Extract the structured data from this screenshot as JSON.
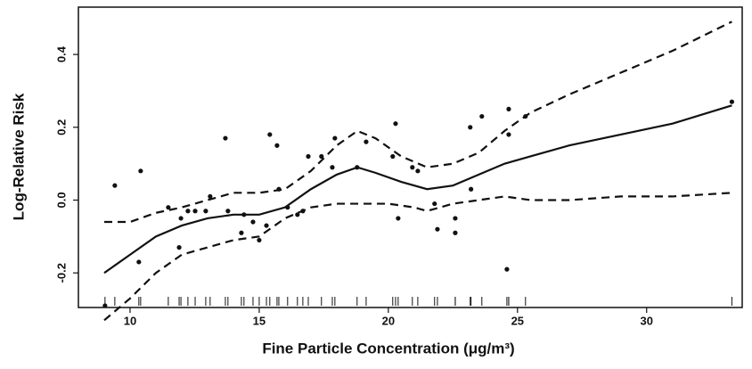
{
  "chart_data": {
    "type": "scatter",
    "x_label": "Fine Particle Concentration (μg/m³)",
    "y_label": "Log-Relative Risk",
    "xlim": [
      8,
      33.7
    ],
    "ylim": [
      -0.295,
      0.53
    ],
    "xticks": [
      10,
      15,
      20,
      25,
      30
    ],
    "yticks": [
      -0.2,
      {
        "value": 0,
        "label": "0.0"
      },
      0.2,
      0.4
    ],
    "color": "#111111",
    "rug": true,
    "x": [
      9.03,
      9.41,
      10.34,
      10.41,
      11.48,
      11.9,
      11.97,
      12.24,
      12.52,
      12.93,
      13.1,
      13.69,
      13.79,
      14.31,
      14.41,
      14.76,
      15.0,
      15.28,
      15.41,
      15.69,
      15.76,
      16.1,
      16.48,
      16.69,
      16.9,
      17.41,
      17.83,
      17.93,
      18.79,
      19.14,
      20.17,
      20.28,
      20.38,
      20.93,
      21.14,
      21.79,
      21.9,
      22.59,
      22.59,
      23.17,
      23.2,
      23.62,
      24.59,
      24.66,
      24.66,
      25.31,
      33.3
    ],
    "values": [
      -0.29,
      0.04,
      -0.17,
      0.08,
      -0.02,
      -0.13,
      -0.05,
      -0.03,
      -0.03,
      -0.03,
      0.01,
      0.17,
      -0.03,
      -0.09,
      -0.04,
      -0.06,
      -0.11,
      -0.07,
      0.18,
      0.15,
      0.03,
      -0.02,
      -0.04,
      -0.03,
      0.12,
      0.12,
      0.09,
      0.17,
      0.09,
      0.16,
      0.12,
      0.21,
      -0.05,
      0.09,
      0.08,
      -0.01,
      -0.08,
      -0.09,
      -0.05,
      0.2,
      0.03,
      0.23,
      -0.19,
      0.25,
      0.18,
      0.23,
      0.27
    ],
    "series": [
      {
        "dashed": false,
        "x": [
          9,
          10,
          11,
          12,
          13,
          14,
          15,
          16,
          17,
          18,
          18.8,
          19.5,
          20.5,
          21.5,
          22.5,
          23.5,
          24.5,
          25.5,
          27,
          29,
          31,
          33.3
        ],
        "values": [
          -0.2,
          -0.15,
          -0.1,
          -0.07,
          -0.05,
          -0.04,
          -0.04,
          -0.02,
          0.03,
          0.07,
          0.09,
          0.075,
          0.05,
          0.03,
          0.04,
          0.07,
          0.1,
          0.12,
          0.15,
          0.18,
          0.21,
          0.26
        ]
      },
      {
        "dashed": true,
        "x": [
          9,
          10,
          11,
          12,
          13,
          14,
          15,
          16,
          17,
          18,
          18.8,
          19.5,
          20.5,
          21.5,
          22.5,
          23.5,
          24.5,
          25.5,
          27,
          29,
          31,
          33.3
        ],
        "values": [
          -0.06,
          -0.06,
          -0.035,
          -0.02,
          0,
          0.02,
          0.02,
          0.03,
          0.08,
          0.15,
          0.19,
          0.17,
          0.12,
          0.09,
          0.1,
          0.13,
          0.19,
          0.24,
          0.29,
          0.35,
          0.41,
          0.49
        ]
      },
      {
        "dashed": true,
        "x": [
          9,
          10,
          11,
          12,
          13,
          14,
          15,
          16,
          17,
          18,
          19,
          20,
          21,
          21.5,
          22.5,
          23.5,
          24.5,
          25.5,
          27,
          29,
          31,
          33.3
        ],
        "values": [
          -0.33,
          -0.27,
          -0.2,
          -0.15,
          -0.13,
          -0.11,
          -0.1,
          -0.05,
          -0.02,
          -0.01,
          -0.01,
          -0.01,
          -0.02,
          -0.03,
          -0.01,
          0,
          0.01,
          0,
          0,
          0.01,
          0.01,
          0.02
        ]
      }
    ]
  }
}
